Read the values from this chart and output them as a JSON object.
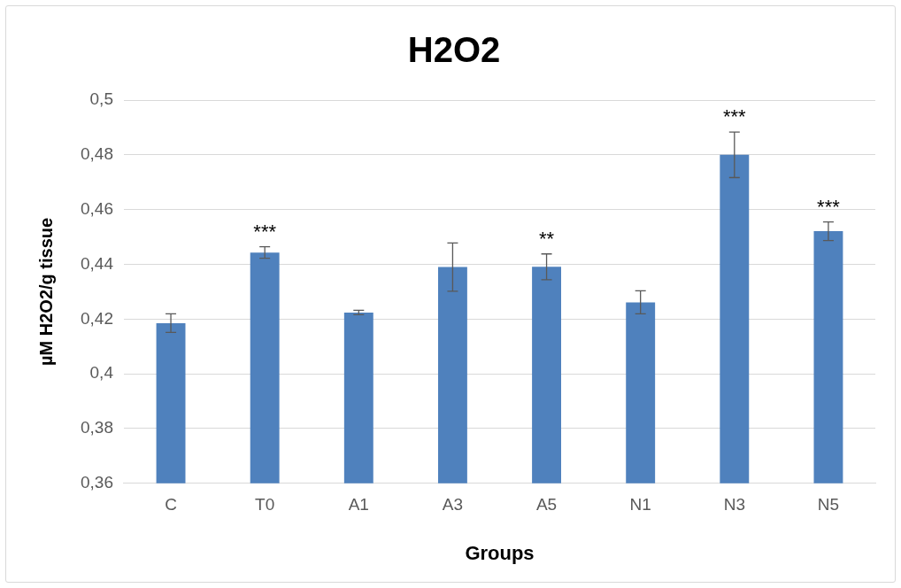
{
  "chart_data": {
    "type": "bar",
    "title": "H2O2",
    "xlabel": "Groups",
    "ylabel": "µM H2O2/g tissue",
    "categories": [
      "C",
      "T0",
      "A1",
      "A3",
      "A5",
      "N1",
      "N3",
      "N5"
    ],
    "values": [
      0.4185,
      0.4443,
      0.4224,
      0.439,
      0.4391,
      0.4261,
      0.48,
      0.4521
    ],
    "errors": [
      0.0034,
      0.0021,
      0.0008,
      0.0088,
      0.0047,
      0.0042,
      0.0083,
      0.0034
    ],
    "color": "#4f81bd",
    "ylim": [
      0.36,
      0.5
    ],
    "yticks": [
      {
        "value": 0.36,
        "label": "0,36"
      },
      {
        "value": 0.38,
        "label": "0,38"
      },
      {
        "value": 0.4,
        "label": "0,4"
      },
      {
        "value": 0.42,
        "label": "0,42"
      },
      {
        "value": 0.44,
        "label": "0,44"
      },
      {
        "value": 0.46,
        "label": "0,46"
      },
      {
        "value": 0.48,
        "label": "0,48"
      },
      {
        "value": 0.5,
        "label": "0,5"
      }
    ],
    "grid": "y",
    "value_labels": [
      null,
      "***",
      null,
      null,
      "**",
      null,
      "***",
      "***"
    ]
  }
}
